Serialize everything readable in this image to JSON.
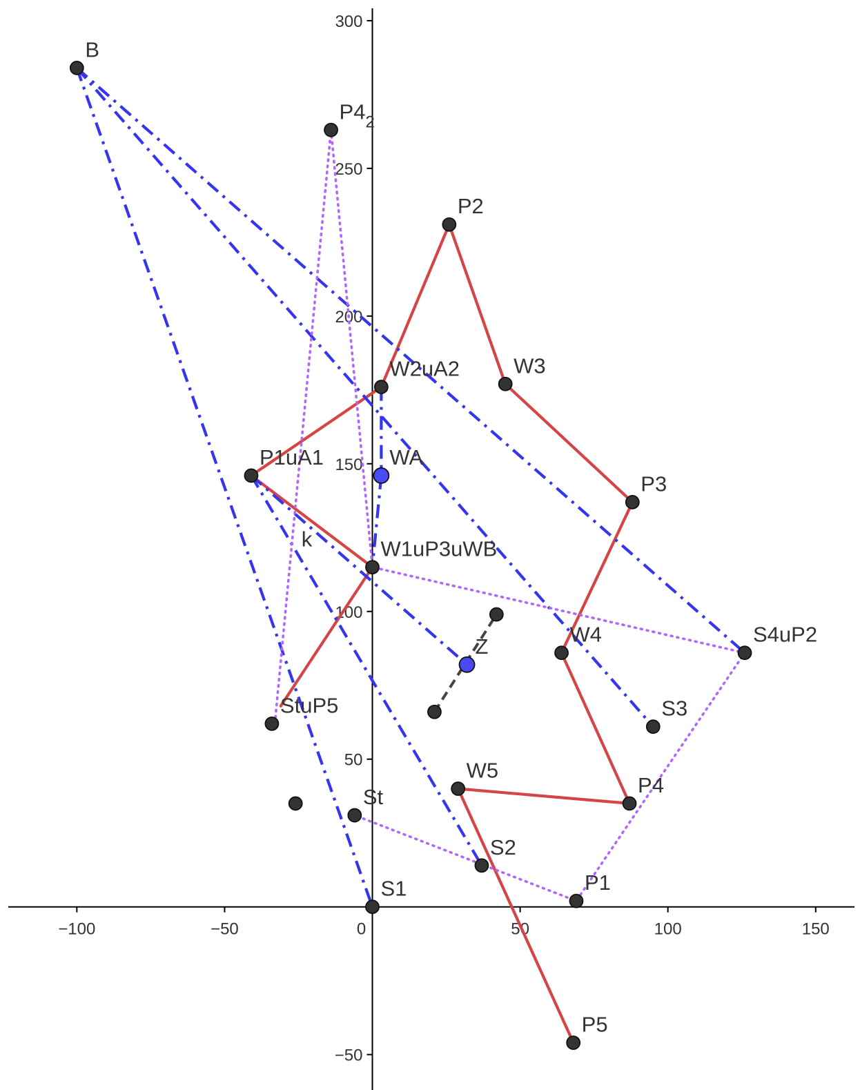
{
  "chart_data": {
    "type": "scatter",
    "colors": {
      "path": "#d64545",
      "path_label": "#cc0000",
      "blue_lines": "#3535f0",
      "blue_point": "#4a4af5",
      "blue_label": "#5858f0",
      "violet": "#b366ff",
      "dash_gray": "#444444",
      "point": "#333333",
      "label": "#333333",
      "axis": "#000000"
    },
    "xlim": [
      -126,
      165
    ],
    "ylim": [
      -62,
      307
    ],
    "x_ticks": [
      {
        "value": -100,
        "label": "−100"
      },
      {
        "value": -50,
        "label": "−50"
      },
      {
        "value": 0,
        "label": "0"
      },
      {
        "value": 50,
        "label": "50"
      },
      {
        "value": 100,
        "label": "100"
      },
      {
        "value": 150,
        "label": "150"
      }
    ],
    "y_ticks": [
      {
        "value": 300,
        "label": "300"
      },
      {
        "value": 250,
        "label": "250"
      },
      {
        "value": 200,
        "label": "200"
      },
      {
        "value": 150,
        "label": "150"
      },
      {
        "value": 100,
        "label": "100"
      },
      {
        "value": 50,
        "label": "50"
      },
      {
        "value": -50,
        "label": "−50"
      }
    ],
    "points": [
      {
        "id": "B",
        "label": "B",
        "x": -100,
        "y": 284,
        "style": "black",
        "label_pos": "above-right"
      },
      {
        "id": "P4_2",
        "label": "P4",
        "sub": "2",
        "x": -14,
        "y": 263,
        "style": "black",
        "label_pos": "above-right"
      },
      {
        "id": "P2",
        "label": "P2",
        "x": 26,
        "y": 231,
        "style": "black",
        "label_pos": "above-right"
      },
      {
        "id": "W2uA2",
        "label": "W2uA2",
        "x": 3,
        "y": 176,
        "style": "black",
        "label_pos": "above-right"
      },
      {
        "id": "W3",
        "label": "W3",
        "x": 45,
        "y": 177,
        "style": "black",
        "label_pos": "above-right"
      },
      {
        "id": "P1uA1",
        "label": "P1uA1",
        "x": -41,
        "y": 146,
        "style": "black",
        "label_pos": "above-right"
      },
      {
        "id": "WA",
        "label": "WA",
        "x": 3,
        "y": 146,
        "style": "blue",
        "label_pos": "above-right"
      },
      {
        "id": "P3",
        "label": "P3",
        "x": 88,
        "y": 137,
        "style": "black",
        "label_pos": "above-right"
      },
      {
        "id": "W1uP3uWB",
        "label": "W1uP3uWB",
        "x": 0,
        "y": 115,
        "style": "black",
        "label_pos": "above-right"
      },
      {
        "id": "E1",
        "label": "",
        "x": 42,
        "y": 99,
        "style": "black",
        "label_pos": "none"
      },
      {
        "id": "S4uP2",
        "label": "S4uP2",
        "x": 126,
        "y": 86,
        "style": "black",
        "label_pos": "above-right"
      },
      {
        "id": "W4",
        "label": "W4",
        "x": 64,
        "y": 86,
        "style": "black",
        "label_pos": "above-right"
      },
      {
        "id": "Z",
        "label": "Z",
        "x": 32,
        "y": 82,
        "style": "blue",
        "label_pos": "above-right"
      },
      {
        "id": "E2",
        "label": "",
        "x": 21,
        "y": 66,
        "style": "black",
        "label_pos": "none"
      },
      {
        "id": "StuP5",
        "label": "StuP5",
        "x": -34,
        "y": 62,
        "style": "black",
        "label_pos": "above-right"
      },
      {
        "id": "S3",
        "label": "S3",
        "x": 95,
        "y": 61,
        "style": "black",
        "label_pos": "above-right"
      },
      {
        "id": "W5",
        "label": "W5",
        "x": 29,
        "y": 40,
        "style": "black",
        "label_pos": "above-right"
      },
      {
        "id": "P4",
        "label": "P4",
        "x": 87,
        "y": 35,
        "style": "black",
        "label_pos": "above-right"
      },
      {
        "id": "E3",
        "label": "",
        "x": -26,
        "y": 35,
        "style": "black",
        "label_pos": "none"
      },
      {
        "id": "St",
        "label": "St",
        "x": -6,
        "y": 31,
        "style": "black",
        "label_pos": "above-right"
      },
      {
        "id": "S2",
        "label": "S2",
        "x": 37,
        "y": 14,
        "style": "black",
        "label_pos": "above-right"
      },
      {
        "id": "P1",
        "label": "P1",
        "x": 69,
        "y": 2,
        "style": "black",
        "label_pos": "above-right"
      },
      {
        "id": "S1",
        "label": "S1",
        "x": 0,
        "y": 0,
        "style": "black",
        "label_pos": "above-right"
      },
      {
        "id": "P5",
        "label": "P5",
        "x": 68,
        "y": -46,
        "style": "black",
        "label_pos": "above-right"
      }
    ],
    "curve_label": {
      "text": "k",
      "x": -24,
      "y": 122
    },
    "series": [
      {
        "style": "red",
        "kind": "polyline",
        "points": [
          [
            -31,
            68
          ],
          [
            0,
            115
          ],
          [
            -41,
            146
          ],
          [
            3,
            176
          ],
          [
            26,
            231
          ],
          [
            45,
            177
          ],
          [
            88,
            137
          ],
          [
            64,
            86
          ],
          [
            87,
            35
          ],
          [
            29,
            40
          ],
          [
            68,
            -46
          ]
        ]
      },
      {
        "style": "blue",
        "kind": "polyline",
        "points": [
          [
            -100,
            284
          ],
          [
            0,
            0
          ]
        ]
      },
      {
        "style": "blue",
        "kind": "polyline",
        "points": [
          [
            -100,
            284
          ],
          [
            95,
            61
          ]
        ]
      },
      {
        "style": "blue",
        "kind": "polyline",
        "points": [
          [
            -100,
            284
          ],
          [
            126,
            86
          ]
        ]
      },
      {
        "style": "blue",
        "kind": "polyline",
        "points": [
          [
            -41,
            146
          ],
          [
            37,
            14
          ]
        ]
      },
      {
        "style": "blue",
        "kind": "polyline",
        "points": [
          [
            -41,
            146
          ],
          [
            32,
            82
          ]
        ]
      },
      {
        "style": "blue",
        "kind": "polyline",
        "points": [
          [
            3,
            146
          ],
          [
            0,
            115
          ]
        ]
      },
      {
        "style": "blue",
        "kind": "polyline",
        "points": [
          [
            3,
            176
          ],
          [
            3,
            146
          ]
        ]
      },
      {
        "style": "violet",
        "kind": "polyline",
        "points": [
          [
            -33,
            62
          ],
          [
            -14,
            263
          ],
          [
            0,
            115
          ],
          [
            126,
            86
          ],
          [
            69,
            2
          ],
          [
            -6,
            31
          ]
        ]
      },
      {
        "style": "dash",
        "kind": "polyline",
        "points": [
          [
            21,
            66
          ],
          [
            42,
            99
          ]
        ]
      }
    ]
  }
}
